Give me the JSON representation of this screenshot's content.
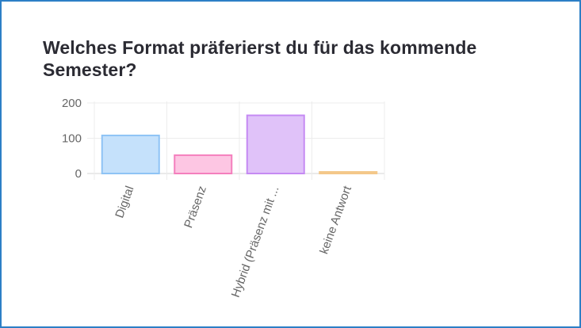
{
  "question": {
    "title": "Welches Format präferierst du für das kommende Semester?"
  },
  "chart_data": {
    "type": "bar",
    "title": "Welches Format präferierst du für das kommende Semester?",
    "categories": [
      "Digital",
      "Präsenz",
      "Hybrid (Präsenz mit ...",
      "keine Antwort"
    ],
    "values": [
      108,
      52,
      165,
      2
    ],
    "ylim": [
      0,
      200
    ],
    "yticks": [
      0,
      100,
      200
    ],
    "grid": true,
    "legend": "none",
    "colors": {
      "fill": [
        "#c5e1fb",
        "#fdc6e3",
        "#e0c2f9",
        "#fde3c0"
      ],
      "stroke": [
        "#8ec3f5",
        "#f47fbd",
        "#c58af3",
        "#f4c88a"
      ]
    }
  }
}
